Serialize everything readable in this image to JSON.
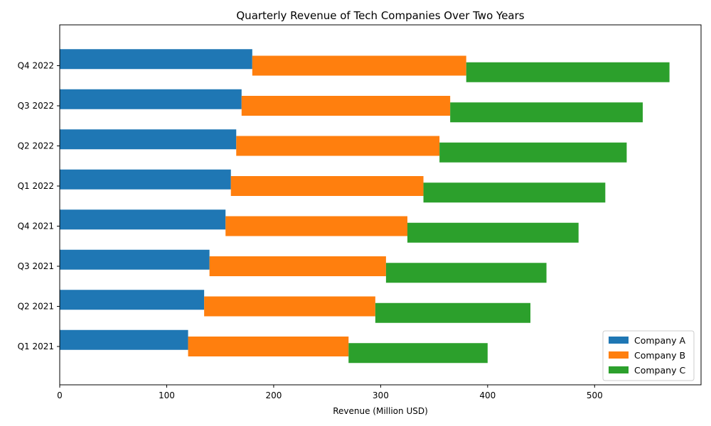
{
  "chart_data": {
    "type": "bar",
    "orientation": "horizontal",
    "title": "Quarterly Revenue of Tech Companies Over Two Years",
    "xlabel": "Revenue (Million USD)",
    "ylabel": "",
    "categories": [
      "Q1 2021",
      "Q2 2021",
      "Q3 2021",
      "Q4 2021",
      "Q1 2022",
      "Q2 2022",
      "Q3 2022",
      "Q4 2022"
    ],
    "series": [
      {
        "name": "Company A",
        "color": "#1f77b4",
        "values": [
          120,
          135,
          140,
          155,
          160,
          165,
          170,
          180
        ]
      },
      {
        "name": "Company B",
        "color": "#ff7f0e",
        "values": [
          150,
          160,
          165,
          170,
          180,
          190,
          195,
          200
        ]
      },
      {
        "name": "Company C",
        "color": "#2ca02c",
        "values": [
          130,
          145,
          150,
          160,
          170,
          175,
          180,
          190
        ]
      }
    ],
    "stacking": "staggered-cumulative",
    "xlim": [
      0,
      600
    ],
    "xticks": [
      0,
      100,
      200,
      300,
      400,
      500
    ],
    "grid": false,
    "legend_position": "lower-right"
  }
}
